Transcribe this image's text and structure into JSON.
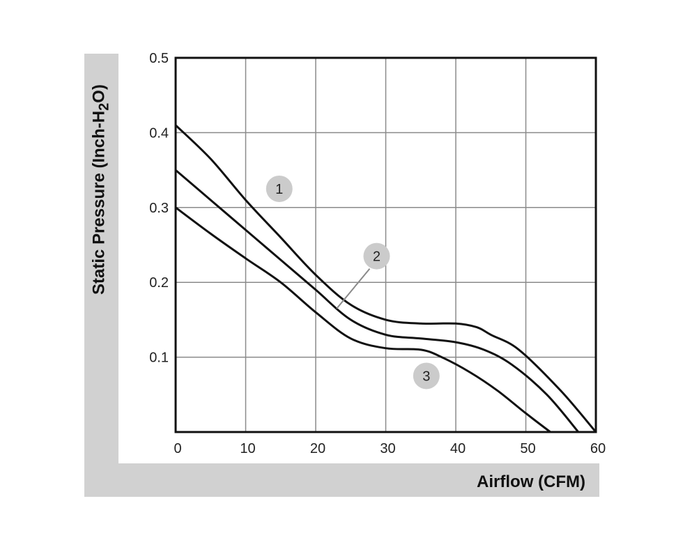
{
  "chart_data": {
    "type": "line",
    "xlabel": "Airflow (CFM)",
    "ylabel": "Static Pressure (Inch-H2O)",
    "xlim": [
      0,
      60
    ],
    "ylim": [
      0,
      0.5
    ],
    "x_ticks": [
      "0",
      "10",
      "20",
      "30",
      "40",
      "50",
      "60"
    ],
    "y_ticks": [
      "0.1",
      "0.2",
      "0.3",
      "0.4",
      "0.5"
    ],
    "grid": true,
    "series": [
      {
        "name": "1",
        "x": [
          0,
          5,
          10,
          15,
          20,
          25,
          30,
          35,
          40,
          43,
          45,
          49,
          55,
          60
        ],
        "y": [
          0.41,
          0.365,
          0.31,
          0.26,
          0.21,
          0.17,
          0.15,
          0.145,
          0.145,
          0.14,
          0.13,
          0.11,
          0.055,
          0.0
        ]
      },
      {
        "name": "2",
        "x": [
          0,
          5,
          10,
          15,
          20,
          25,
          30,
          35,
          40,
          44,
          48,
          53,
          57.5
        ],
        "y": [
          0.35,
          0.31,
          0.27,
          0.23,
          0.19,
          0.15,
          0.13,
          0.125,
          0.12,
          0.11,
          0.09,
          0.05,
          0.0
        ]
      },
      {
        "name": "3",
        "x": [
          0,
          5,
          10,
          15,
          20,
          25,
          30,
          35,
          38,
          42,
          46,
          50,
          53.5
        ],
        "y": [
          0.3,
          0.265,
          0.232,
          0.2,
          0.16,
          0.125,
          0.112,
          0.11,
          0.1,
          0.08,
          0.055,
          0.025,
          0.0
        ]
      }
    ],
    "annotations": [
      {
        "label": "1",
        "x": 14.8,
        "y": 0.325
      },
      {
        "label": "2",
        "x": 28.7,
        "y": 0.235
      },
      {
        "label": "3",
        "x": 35.8,
        "y": 0.075
      }
    ],
    "badge_color": "#cbcbcb",
    "grid_color": "#8a8a8a",
    "line_color": "#111111"
  }
}
